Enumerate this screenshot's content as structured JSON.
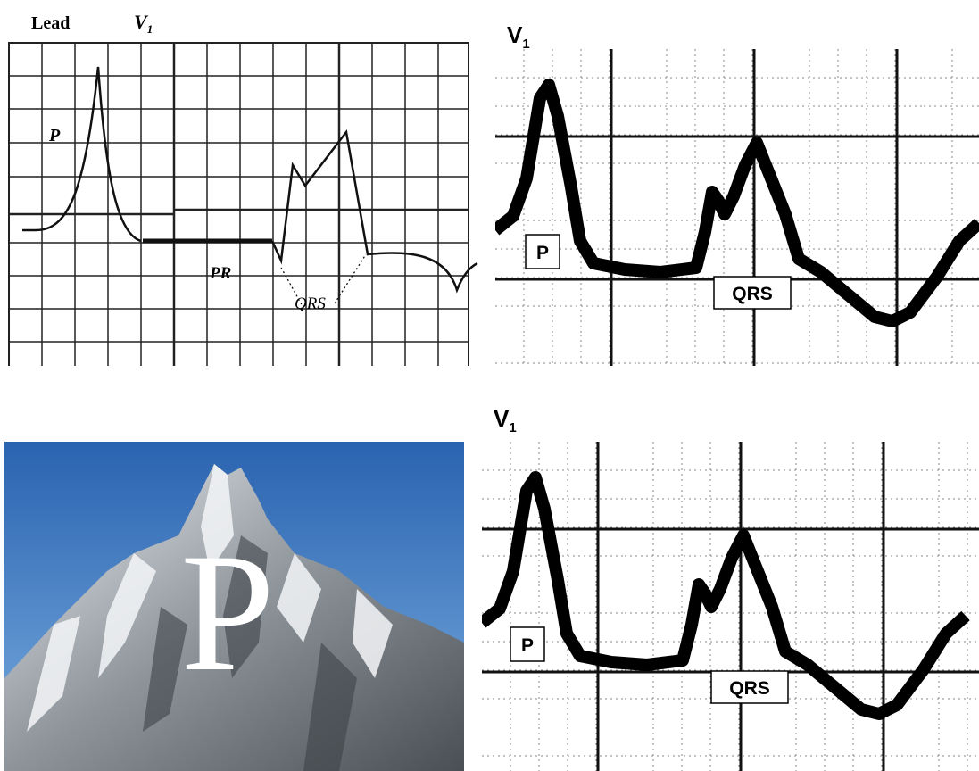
{
  "lead_diagram": {
    "title": "Lead",
    "lead": {
      "letter": "V",
      "subscript": "1"
    },
    "labels": {
      "p": "P",
      "pr": "PR",
      "qrs": "QRS"
    }
  },
  "ecg_tracings": [
    {
      "lead": {
        "letter": "V",
        "subscript": "1"
      },
      "p": "P",
      "qrs": "QRS"
    },
    {
      "lead": {
        "letter": "V",
        "subscript": "1"
      },
      "p": "P",
      "qrs": "QRS"
    }
  ],
  "photo": {
    "label": "P"
  }
}
